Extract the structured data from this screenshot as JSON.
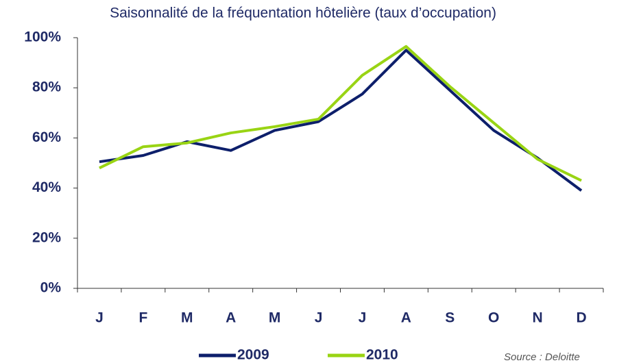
{
  "chart_data": {
    "type": "line",
    "title": "Saisonnalité de la fréquentation hôtelière (taux d’occupation)",
    "categories": [
      "J",
      "F",
      "M",
      "A",
      "M",
      "J",
      "J",
      "A",
      "S",
      "O",
      "N",
      "D"
    ],
    "series": [
      {
        "name": "2009",
        "color": "#0d1f6b",
        "values": [
          50.5,
          53,
          58.5,
          55,
          63,
          66.5,
          77.5,
          95,
          79,
          63,
          52,
          39
        ]
      },
      {
        "name": "2010",
        "color": "#99d414",
        "values": [
          48,
          56.5,
          58,
          62,
          64.5,
          67.5,
          85,
          96.5,
          80.5,
          66,
          51.5,
          43
        ]
      }
    ],
    "ylim": [
      0,
      100
    ],
    "yticks": [
      {
        "value": 0,
        "label": "0%"
      },
      {
        "value": 20,
        "label": "20%"
      },
      {
        "value": 40,
        "label": "40%"
      },
      {
        "value": 60,
        "label": "60%"
      },
      {
        "value": 80,
        "label": "80%"
      },
      {
        "value": 100,
        "label": "100%"
      }
    ],
    "grid": false,
    "legend": "bottom",
    "source": "Source : Deloitte"
  }
}
